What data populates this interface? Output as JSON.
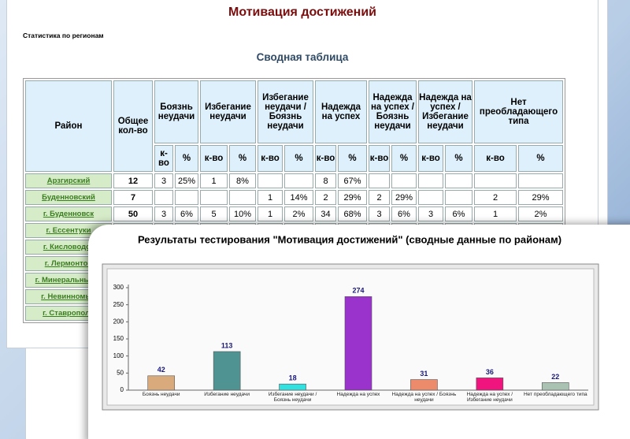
{
  "header": {
    "title": "Мотивация достижений",
    "subtitle": "Статистика по регионам"
  },
  "table": {
    "title": "Сводная таблица",
    "district": "Район",
    "total": "Общее кол-во",
    "groups": [
      "Боязнь неудачи",
      "Избегание неудачи",
      "Избегание неудачи / Боязнь неудачи",
      "Надежда на успех",
      "Надежда на успех / Боязнь неудачи",
      "Надежда на успех / Избегание неудачи",
      "Нет преобладающего типа"
    ],
    "count": "к-во",
    "percent": "%",
    "rows": [
      [
        "Арзгирский",
        12,
        3,
        "25%",
        1,
        "8%",
        null,
        null,
        8,
        "67%",
        null,
        null,
        null,
        null,
        null,
        null
      ],
      [
        "Буденновский",
        7,
        null,
        null,
        null,
        null,
        1,
        "14%",
        2,
        "29%",
        2,
        "29%",
        null,
        null,
        2,
        "29%"
      ],
      [
        "г. Буденновск",
        50,
        3,
        "6%",
        5,
        "10%",
        1,
        "2%",
        34,
        "68%",
        3,
        "6%",
        3,
        "6%",
        1,
        "2%"
      ],
      [
        "г. Ессентуки"
      ],
      [
        "г. Кисловодск"
      ],
      [
        "г. Лермонтов"
      ],
      [
        "г. Минеральные В"
      ],
      [
        "г. Невинномыс"
      ],
      [
        "г. Ставрополь"
      ]
    ]
  },
  "chart_data": {
    "type": "bar",
    "title": "Результаты тестирования \"Мотивация достижений\" (сводные данные по районам)",
    "categories": [
      "Боязнь неудачи",
      "Избегание неудачи",
      "Избегание неудачи / Боязнь неудачи",
      "Надежда на успех",
      "Надежда на успех / Боязнь неудачи",
      "Надежда на успех / Избегание неудачи",
      "Нет преобладающего типа"
    ],
    "values": [
      42,
      113,
      18,
      274,
      31,
      36,
      22
    ],
    "colors": [
      "#d9aa7c",
      "#4f9393",
      "#33e0e0",
      "#9933cc",
      "#ec8a6c",
      "#f0147f",
      "#a9c2b2"
    ],
    "ylim": [
      0,
      300
    ],
    "yticks": [
      0,
      50,
      100,
      150,
      200,
      250,
      300
    ],
    "grid": false
  }
}
